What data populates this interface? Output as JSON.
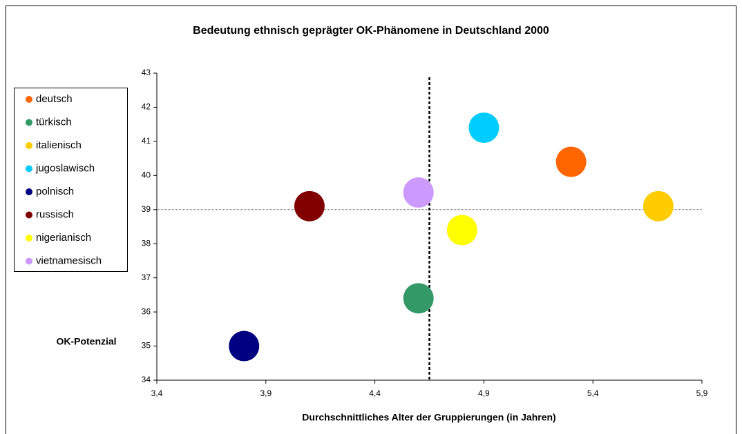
{
  "chart_data": {
    "type": "scatter",
    "title": "Bedeutung ethnisch geprägter OK-Phänomene in Deutschland 2000",
    "x_label": "Durchschnittliches Alter der Gruppierungen (in Jahren)",
    "y_label": "OK-Potenzial",
    "series": [
      {
        "name": "deutsch",
        "color": "#ff6600",
        "x": [
          5.3
        ],
        "values": [
          40.4
        ]
      },
      {
        "name": "türkisch",
        "color": "#339966",
        "x": [
          4.6
        ],
        "values": [
          36.4
        ]
      },
      {
        "name": "italienisch",
        "color": "#ffcc00",
        "x": [
          5.7
        ],
        "values": [
          39.1
        ]
      },
      {
        "name": "jugoslawisch",
        "color": "#00ccff",
        "x": [
          4.9
        ],
        "values": [
          41.4
        ]
      },
      {
        "name": "polnisch",
        "color": "#000080",
        "x": [
          3.8
        ],
        "values": [
          35.0
        ]
      },
      {
        "name": "russisch",
        "color": "#800000",
        "x": [
          4.1
        ],
        "values": [
          39.1
        ]
      },
      {
        "name": "nigerianisch",
        "color": "#ffff00",
        "x": [
          4.8
        ],
        "values": [
          38.4
        ]
      },
      {
        "name": "vietnamesisch",
        "color": "#cc99ff",
        "x": [
          4.6
        ],
        "values": [
          39.5
        ]
      }
    ],
    "xlim": [
      3.4,
      5.9
    ],
    "xticks": [
      {
        "value": 3.4,
        "label": "3,4"
      },
      {
        "value": 3.9,
        "label": "3,9"
      },
      {
        "value": 4.4,
        "label": "4,4"
      },
      {
        "value": 4.9,
        "label": "4,9"
      },
      {
        "value": 5.4,
        "label": "5,4"
      },
      {
        "value": 5.9,
        "label": "5,9"
      }
    ],
    "ylim": [
      34,
      43
    ],
    "yticks": [
      34,
      35,
      36,
      37,
      38,
      39,
      40,
      41,
      42,
      43
    ],
    "vline": 4.65,
    "hline": 39,
    "legend": "left",
    "grid": false
  }
}
